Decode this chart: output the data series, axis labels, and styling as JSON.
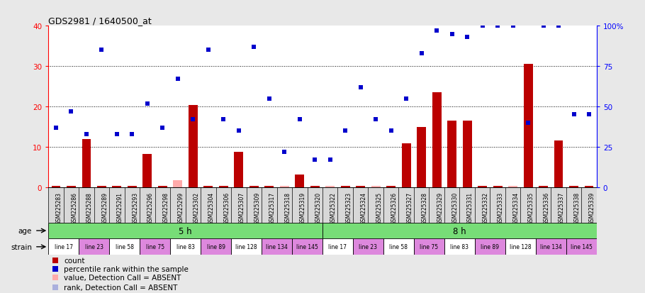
{
  "title": "GDS2981 / 1640500_at",
  "samples": [
    "GSM225283",
    "GSM225286",
    "GSM225288",
    "GSM225289",
    "GSM225291",
    "GSM225293",
    "GSM225296",
    "GSM225298",
    "GSM225299",
    "GSM225302",
    "GSM225304",
    "GSM225306",
    "GSM225307",
    "GSM225309",
    "GSM225317",
    "GSM225318",
    "GSM225319",
    "GSM225320",
    "GSM225322",
    "GSM225323",
    "GSM225324",
    "GSM225325",
    "GSM225326",
    "GSM225327",
    "GSM225328",
    "GSM225329",
    "GSM225330",
    "GSM225331",
    "GSM225332",
    "GSM225333",
    "GSM225334",
    "GSM225335",
    "GSM225336",
    "GSM225337",
    "GSM225338",
    "GSM225339"
  ],
  "count_values": [
    0.3,
    0.3,
    12.0,
    0.3,
    0.3,
    0.3,
    8.2,
    0.3,
    1.8,
    20.3,
    0.3,
    0.3,
    8.7,
    0.3,
    0.3,
    0.3,
    3.2,
    0.3,
    0.3,
    0.3,
    0.3,
    0.3,
    0.3,
    10.8,
    15.0,
    23.5,
    16.5,
    16.5,
    0.3,
    0.3,
    0.3,
    30.5,
    0.3,
    11.5,
    0.3,
    0.3
  ],
  "count_absent": [
    false,
    false,
    false,
    false,
    false,
    false,
    false,
    false,
    true,
    false,
    false,
    false,
    false,
    false,
    false,
    true,
    false,
    false,
    true,
    false,
    false,
    true,
    false,
    false,
    false,
    false,
    false,
    false,
    false,
    false,
    true,
    false,
    false,
    false,
    false,
    false
  ],
  "rank_values": [
    37,
    47,
    33,
    85,
    33,
    33,
    52,
    37,
    67,
    42,
    85,
    42,
    35,
    87,
    55,
    22,
    42,
    17,
    17,
    35,
    62,
    42,
    35,
    55,
    83,
    97,
    95,
    93,
    100,
    100,
    100,
    40,
    100,
    100,
    45,
    45
  ],
  "rank_absent": [
    false,
    false,
    false,
    false,
    false,
    false,
    false,
    false,
    false,
    false,
    false,
    false,
    false,
    false,
    false,
    false,
    false,
    false,
    false,
    false,
    false,
    false,
    false,
    false,
    false,
    false,
    false,
    false,
    false,
    false,
    false,
    false,
    false,
    false,
    false,
    false
  ],
  "age_groups": [
    {
      "label": "5 h",
      "start": 0,
      "end": 18,
      "color": "#77dd77"
    },
    {
      "label": "8 h",
      "start": 18,
      "end": 36,
      "color": "#77dd77"
    }
  ],
  "strain_groups": [
    {
      "label": "line 17",
      "start": 0,
      "end": 2
    },
    {
      "label": "line 23",
      "start": 2,
      "end": 4
    },
    {
      "label": "line 58",
      "start": 4,
      "end": 6
    },
    {
      "label": "line 75",
      "start": 6,
      "end": 8
    },
    {
      "label": "line 83",
      "start": 8,
      "end": 10
    },
    {
      "label": "line 89",
      "start": 10,
      "end": 12
    },
    {
      "label": "line 128",
      "start": 12,
      "end": 14
    },
    {
      "label": "line 134",
      "start": 14,
      "end": 16
    },
    {
      "label": "line 145",
      "start": 16,
      "end": 18
    },
    {
      "label": "line 17",
      "start": 18,
      "end": 20
    },
    {
      "label": "line 23",
      "start": 20,
      "end": 22
    },
    {
      "label": "line 58",
      "start": 22,
      "end": 24
    },
    {
      "label": "line 75",
      "start": 24,
      "end": 26
    },
    {
      "label": "line 83",
      "start": 26,
      "end": 28
    },
    {
      "label": "line 89",
      "start": 28,
      "end": 30
    },
    {
      "label": "line 128",
      "start": 30,
      "end": 32
    },
    {
      "label": "line 134",
      "start": 32,
      "end": 34
    },
    {
      "label": "line 145",
      "start": 34,
      "end": 36
    }
  ],
  "strain_colors": {
    "line 17": "#ffffff",
    "line 23": "#dd88dd",
    "line 58": "#ffffff",
    "line 75": "#dd88dd",
    "line 83": "#ffffff",
    "line 89": "#dd88dd",
    "line 128": "#ffffff",
    "line 134": "#dd88dd",
    "line 145": "#dd88dd"
  },
  "left_ylim": [
    0,
    40
  ],
  "right_ylim": [
    0,
    100
  ],
  "left_yticks": [
    0,
    10,
    20,
    30,
    40
  ],
  "right_yticks": [
    0,
    25,
    50,
    75,
    100
  ],
  "bar_color": "#bb0000",
  "bar_absent_color": "#ffaaaa",
  "dot_color": "#0000cc",
  "dot_absent_color": "#aab0dd",
  "plot_bg_color": "#ffffff",
  "tick_bg_color": "#d8d8d8"
}
